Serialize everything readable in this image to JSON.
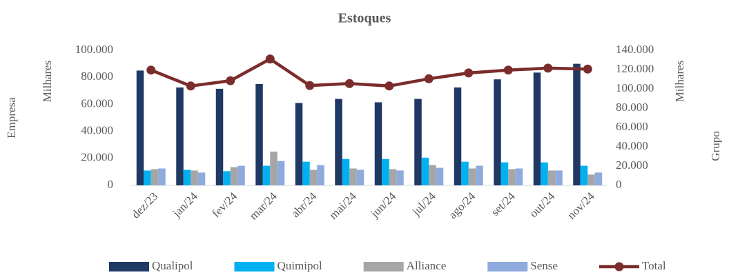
{
  "chart_data": {
    "type": "bar",
    "title": "Estoques",
    "y_label": "Empresa",
    "y_unit_label": "Milhares",
    "y2_label": "Grupo",
    "y2_unit_label": "Milhares",
    "categories": [
      "dez/23",
      "jan/24",
      "fev/24",
      "mar/24",
      "abr/24",
      "mai/24",
      "jun/24",
      "jul/24",
      "ago/24",
      "set/24",
      "out/24",
      "nov/24"
    ],
    "series": [
      {
        "name": "Qualipol",
        "color": "#1f3864",
        "values": [
          85000,
          72500,
          71500,
          75000,
          61000,
          64000,
          61500,
          64000,
          72500,
          78500,
          83500,
          90000
        ]
      },
      {
        "name": "Quimipol",
        "color": "#00b0f0",
        "values": [
          11000,
          11500,
          10500,
          14500,
          17500,
          19500,
          19500,
          20500,
          17500,
          17000,
          17000,
          14500
        ]
      },
      {
        "name": "Alliance",
        "color": "#a6a6a6",
        "values": [
          12000,
          11000,
          13500,
          25000,
          11500,
          12500,
          12000,
          15000,
          12500,
          12000,
          11000,
          8000
        ]
      },
      {
        "name": "Sense",
        "color": "#8faadc",
        "values": [
          12500,
          9500,
          14500,
          18000,
          15000,
          11500,
          11000,
          13000,
          14500,
          12500,
          11000,
          9500
        ]
      },
      {
        "name": "Total",
        "color": "#7b2c2c",
        "type": "line",
        "axis": "y2",
        "values": [
          119500,
          103000,
          108500,
          131000,
          103500,
          105500,
          103000,
          110500,
          116500,
          119500,
          121500,
          120500
        ]
      }
    ],
    "ylim": [
      0,
      100000
    ],
    "yticks": [
      0,
      {
        "value": 20000,
        "label": "20.000"
      },
      {
        "value": 40000,
        "label": "40.000"
      },
      {
        "value": 60000,
        "label": "60.000"
      },
      {
        "value": 80000,
        "label": "80.000"
      },
      {
        "value": 100000,
        "label": "100.000"
      }
    ],
    "y2lim": [
      0,
      140000
    ],
    "y2ticks": [
      0,
      {
        "value": 20000,
        "label": "20.000"
      },
      {
        "value": 40000,
        "label": "40.000"
      },
      {
        "value": 60000,
        "label": "60.000"
      },
      {
        "value": 80000,
        "label": "80.000"
      },
      {
        "value": 100000,
        "label": "100.000"
      },
      {
        "value": 120000,
        "label": "120.000"
      },
      {
        "value": 140000,
        "label": "140.000"
      }
    ],
    "legend": "bottom"
  }
}
